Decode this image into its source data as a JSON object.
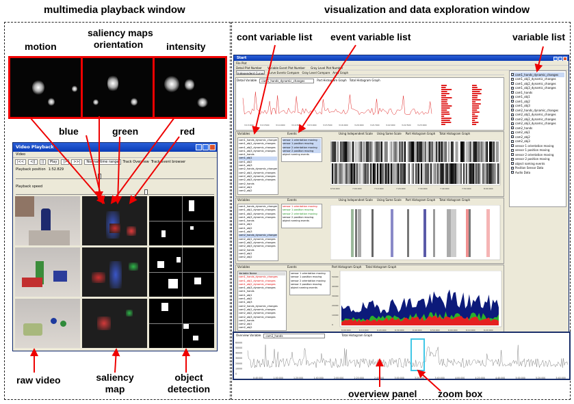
{
  "left_panel": {
    "title": "multimedia playback window",
    "saliency_header": [
      "saliency maps",
      "orientation"
    ],
    "channel_labels": {
      "motion": "motion",
      "intensity": "intensity"
    },
    "color_labels": {
      "blue": "blue",
      "green": "green",
      "red": "red"
    },
    "bottom_labels": {
      "raw_video": "raw video",
      "saliency_map": [
        "saliency",
        "map"
      ],
      "object_detection": [
        "object",
        "detection"
      ]
    }
  },
  "playback_window": {
    "title": "Video Playback",
    "menu": "Video",
    "controls": [
      "|<<",
      "<||",
      "||",
      "Play",
      "|>",
      ">>|",
      "Normal time range",
      "Track Overview",
      "Track event browser"
    ],
    "position_label": "Playback position",
    "position_value": "1:52.829",
    "position_fraction": 0.43,
    "speed_label": "Playback speed",
    "speed_fraction": 0.67
  },
  "right_panel": {
    "title": "visualization and data exploration window",
    "labels": {
      "cont_variable_list": "cont variable list",
      "event_variable_list": "event variable list",
      "variable_list": "variable list",
      "overview_panel": "overview panel",
      "zoom_box": "zoom  box"
    }
  },
  "viz_window": {
    "title": "Start",
    "menu": "File  Plot",
    "toolbar": [
      "Detail Plot Number",
      "Variable Event Plot Number",
      "Gray Level Plot Number"
    ],
    "tabs": [
      "Independent Curve",
      "Curve Events Compare",
      "Gray Level Compare",
      "Area Graph"
    ],
    "detail_variable_label": "Detail Variable",
    "detail_variable_value": "cam1_hands_dynamic_changes",
    "histogram_options": [
      "Part Histogram Graph",
      "Total Histogram Graph"
    ],
    "scale_options": [
      "Using Independent Scale",
      "Using Same Scale",
      "Part Histogram Graph",
      "Total Histogram Graph"
    ],
    "variables_header": "Variables",
    "events_header": "Events",
    "variable_name_header": "Variable Name",
    "variables": [
      "cam1_hands_dynamic_changes",
      "cam1_obj1_dynamic_changes",
      "cam1_obj2_dynamic_changes",
      "cam1_obj3_dynamic_changes",
      "cam1_hands",
      "cam1_obj1",
      "cam1_obj2",
      "cam1_obj3",
      "cam2_hands_dynamic_changes",
      "cam2_obj1_dynamic_changes",
      "cam2_obj2_dynamic_changes",
      "cam2_obj3_dynamic_changes",
      "cam2_hands",
      "cam2_obj1",
      "cam2_obj2"
    ],
    "events": [
      "sensor 1 orientation moving",
      "sensor 1 position moving",
      "sensor 2 orientation moving",
      "sensor 2 position moving",
      "object naming events"
    ],
    "side_variables": [
      "cam1_hands_dynamic_changes",
      "cam1_obj1_dynamic_changes",
      "cam1_obj2_dynamic_changes",
      "cam1_obj3_dynamic_changes",
      "cam1_hands",
      "cam1_obj1",
      "cam1_obj2",
      "cam1_obj3",
      "cam2_hands_dynamic_changes",
      "cam2_obj1_dynamic_changes",
      "cam2_obj2_dynamic_changes",
      "cam2_obj3_dynamic_changes",
      "cam2_hands",
      "cam2_obj1",
      "cam2_obj2",
      "cam2_obj3",
      "sensor 1 orientation moving",
      "sensor 1 position moving",
      "sensor 2 orientation moving",
      "sensor 2 position moving",
      "object naming events",
      "Position Sensor Data",
      "Audio Data"
    ],
    "top_chart_ticks": [
      "3:13:000",
      "3:13:500",
      "3:14:000",
      "3:14:500",
      "3:15:000",
      "3:15:500",
      "3:16:000",
      "3:20:000",
      "3:21:500",
      "3:22:000",
      "3:22:500",
      "3:23:000"
    ],
    "gray_ticks": [
      "6:50:000",
      "7:00:000",
      "7:10:000",
      "7:20:000",
      "7:30:000",
      "7:40:000",
      "7:50:000",
      "8:00:000"
    ],
    "area_ticks": [
      "6:00:000",
      "6:10:000",
      "6:20:000",
      "6:30:000",
      "6:40:000",
      "6:50:000",
      "6:00:000",
      "6:10:000",
      "6:20:000"
    ],
    "area_yticks": [
      "0",
      "10000",
      "20000",
      "30000",
      "40000",
      "50000"
    ],
    "overview_variable_label": "Overview Variable",
    "overview_variable_value": "cam1_hands",
    "overview_histogram": "Total Histogram Graph",
    "overview_yticks": [
      "0",
      "10000",
      "20000",
      "30000",
      "40000",
      "50000",
      "60000"
    ],
    "overview_ticks": [
      "0:40:000",
      "1:00:000",
      "1:20:000",
      "1:40:000",
      "2:00:000",
      "2:20:000",
      "2:40:000",
      "3:00:000",
      "3:20:000",
      "3:40:000",
      "4:00:000",
      "4:20:000",
      "4:40:000",
      "5:00:000",
      "5:20:000",
      "5:40:000"
    ]
  },
  "colors": {
    "highlight_red": "#e00000",
    "zoom_cyan": "#3fc6e6",
    "overview_border": "#1a2f6a",
    "area_navy": "#0c1a7a"
  }
}
